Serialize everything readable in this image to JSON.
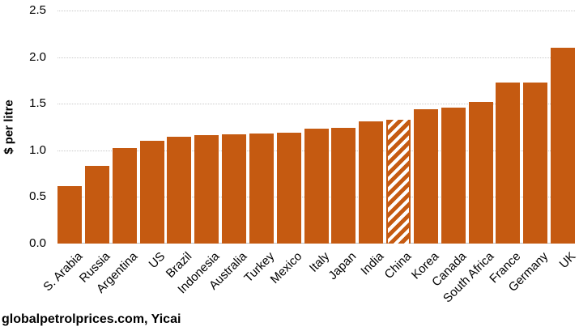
{
  "source_note": "globalpetrolprices.com, Yicai",
  "chart_data": {
    "type": "bar",
    "title": "",
    "ylabel": "$ per litre",
    "xlabel": "",
    "ylim": [
      0,
      2.5
    ],
    "yticks": [
      "0.0",
      "0.5",
      "1.0",
      "1.5",
      "2.0",
      "2.5"
    ],
    "grid": "horizontal-dotted",
    "legend": "none",
    "bar_color": "#C55A11",
    "gridline_color": "#C9C9C9",
    "highlight_category": "China",
    "highlight_style": "diagonal-hatch",
    "categories": [
      "S. Arabia",
      "Russia",
      "Argentina",
      "US",
      "Brazil",
      "Indonesia",
      "Australia",
      "Turkey",
      "Mexico",
      "Italy",
      "Japan",
      "India",
      "China",
      "Korea",
      "Canada",
      "South Africa",
      "France",
      "Germany",
      "UK"
    ],
    "values": [
      0.62,
      0.83,
      1.02,
      1.1,
      1.15,
      1.16,
      1.17,
      1.18,
      1.19,
      1.23,
      1.24,
      1.31,
      1.33,
      1.44,
      1.46,
      1.52,
      1.73,
      1.73,
      2.1
    ]
  }
}
